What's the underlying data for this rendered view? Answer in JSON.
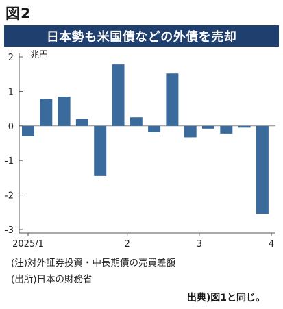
{
  "figure_label": "図2",
  "banner_title": "日本勢も米国債などの外債を売却",
  "notes": [
    "(注)対外証券投資・中長期債の売買差額",
    "(出所)日本の財務省"
  ],
  "source_line": "出典)図1と同じ。",
  "colors": {
    "bar": "#3a6b9c",
    "banner": "#1f3f6e",
    "axis": "#555555"
  },
  "chart_data": {
    "type": "bar",
    "unit_label": "兆円",
    "title": "日本勢も米国債などの外債を売却",
    "ylim": [
      -3.1,
      2.1
    ],
    "yticks": [
      2,
      1,
      0,
      -1,
      -2,
      -3
    ],
    "x_tick_labels": [
      "2025/1",
      "2",
      "3",
      "4"
    ],
    "label_positions": [
      0,
      5.5,
      9.5,
      13.5
    ],
    "grid": false,
    "values": [
      -0.3,
      0.78,
      0.85,
      0.2,
      -1.45,
      1.78,
      0.25,
      -0.18,
      1.52,
      -0.33,
      -0.08,
      -0.22,
      -0.05,
      -2.55
    ]
  }
}
